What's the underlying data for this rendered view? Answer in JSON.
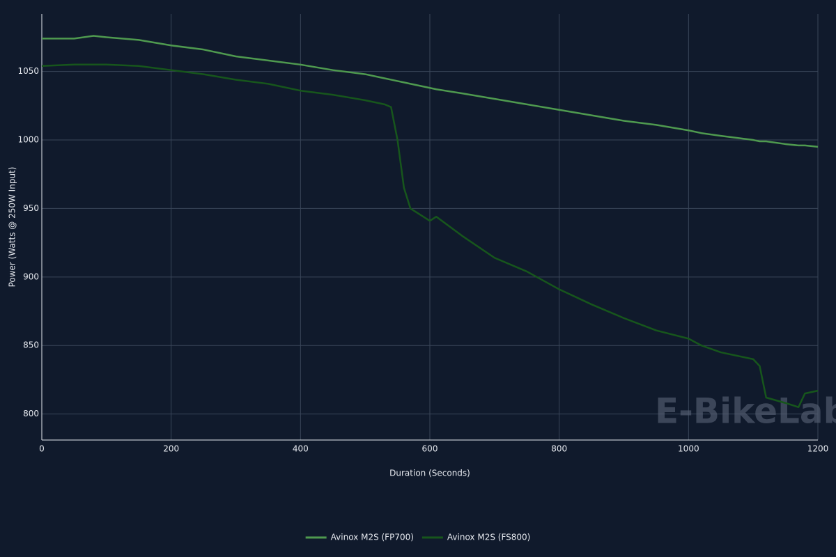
{
  "chart_data": {
    "type": "line",
    "x_label": "Duration (Seconds)",
    "y_label": "Power (Watts @ 250W Input)",
    "watermark": "E-BikeLab",
    "x": [
      0,
      50,
      80,
      100,
      150,
      200,
      250,
      300,
      350,
      400,
      450,
      500,
      530,
      540,
      550,
      560,
      570,
      600,
      610,
      650,
      700,
      750,
      800,
      850,
      900,
      950,
      1000,
      1020,
      1050,
      1100,
      1110,
      1120,
      1150,
      1170,
      1180,
      1200
    ],
    "series": [
      {
        "name": "Avinox M2S (FP700)",
        "color": "#4f9a4f",
        "values": [
          1074,
          1074,
          1076,
          1075,
          1073,
          1069,
          1066,
          1061,
          1058,
          1055,
          1051,
          1048,
          1045,
          1044,
          1043,
          1042,
          1041,
          1038,
          1037,
          1034,
          1030,
          1026,
          1022,
          1018,
          1014,
          1011,
          1007,
          1005,
          1003,
          1000,
          999,
          999,
          997,
          996,
          996,
          995
        ]
      },
      {
        "name": "Avinox M2S (FS800)",
        "color": "#17561c",
        "values": [
          1054,
          1055,
          1055,
          1055,
          1054,
          1051,
          1048,
          1044,
          1041,
          1036,
          1033,
          1029,
          1026,
          1024,
          1000,
          965,
          950,
          941,
          944,
          930,
          914,
          904,
          891,
          880,
          870,
          861,
          855,
          850,
          845,
          840,
          835,
          812,
          808,
          805,
          815,
          817
        ]
      }
    ],
    "xlim": [
      0,
      1200
    ],
    "ylim": [
      781,
      1092
    ],
    "xticks": [
      0,
      200,
      400,
      600,
      800,
      1000,
      1200
    ],
    "yticks": [
      800,
      850,
      900,
      950,
      1000,
      1050
    ],
    "grid": true,
    "legend": "bottom"
  }
}
